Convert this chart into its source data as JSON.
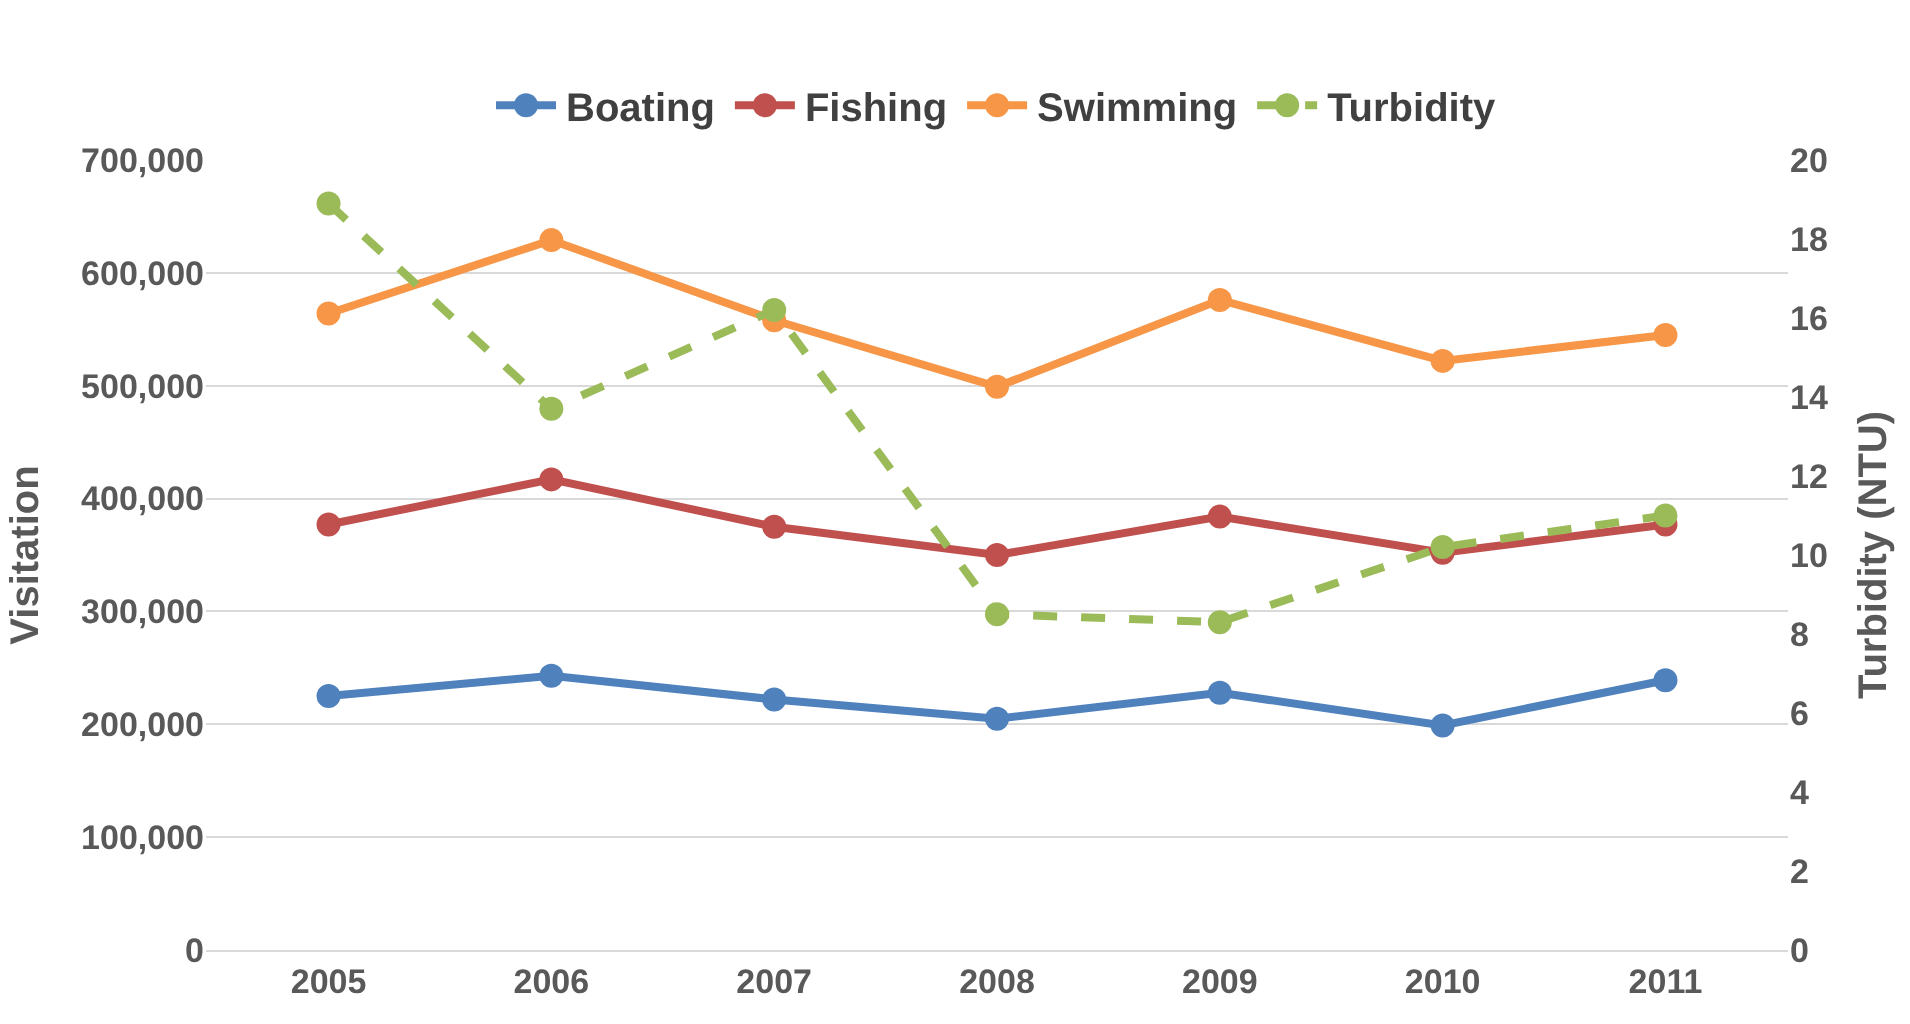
{
  "chart_data": {
    "type": "line",
    "categories": [
      "2005",
      "2006",
      "2007",
      "2008",
      "2009",
      "2010",
      "2011"
    ],
    "ylabel": "Visitation",
    "y2label": "Turbidity (NTU)",
    "ylim": [
      0,
      700000
    ],
    "yticks": [
      {
        "value": 0,
        "label": "0"
      },
      {
        "value": 100000,
        "label": "100,000"
      },
      {
        "value": 200000,
        "label": "200,000"
      },
      {
        "value": 300000,
        "label": "300,000"
      },
      {
        "value": 400000,
        "label": "400,000"
      },
      {
        "value": 500000,
        "label": "500,000"
      },
      {
        "value": 600000,
        "label": "600,000"
      },
      {
        "value": 700000,
        "label": "700,000"
      }
    ],
    "y2lim": [
      0,
      20
    ],
    "y2ticks": [
      0,
      2,
      4,
      6,
      8,
      10,
      12,
      14,
      16,
      18,
      20
    ],
    "grid": "y",
    "legend": "top",
    "marker": "circle",
    "series": [
      {
        "name": "Boating",
        "color": "#4f81bd",
        "values": [
          225000,
          243000,
          222000,
          205000,
          228000,
          199000,
          239000
        ]
      },
      {
        "name": "Fishing",
        "color": "#c0504d",
        "values": [
          377000,
          417000,
          375000,
          350000,
          384000,
          352000,
          377000
        ]
      },
      {
        "name": "Swimming",
        "color": "#f79646",
        "values": [
          564000,
          629000,
          558000,
          499000,
          576000,
          522000,
          545000
        ]
      },
      {
        "name": "Turbidity",
        "color": "#9bbb59",
        "axis": "y2",
        "line_style": "dashed",
        "values": [
          18.9,
          13.7,
          16.2,
          8.5,
          8.3,
          10.2,
          11.0
        ]
      }
    ]
  }
}
